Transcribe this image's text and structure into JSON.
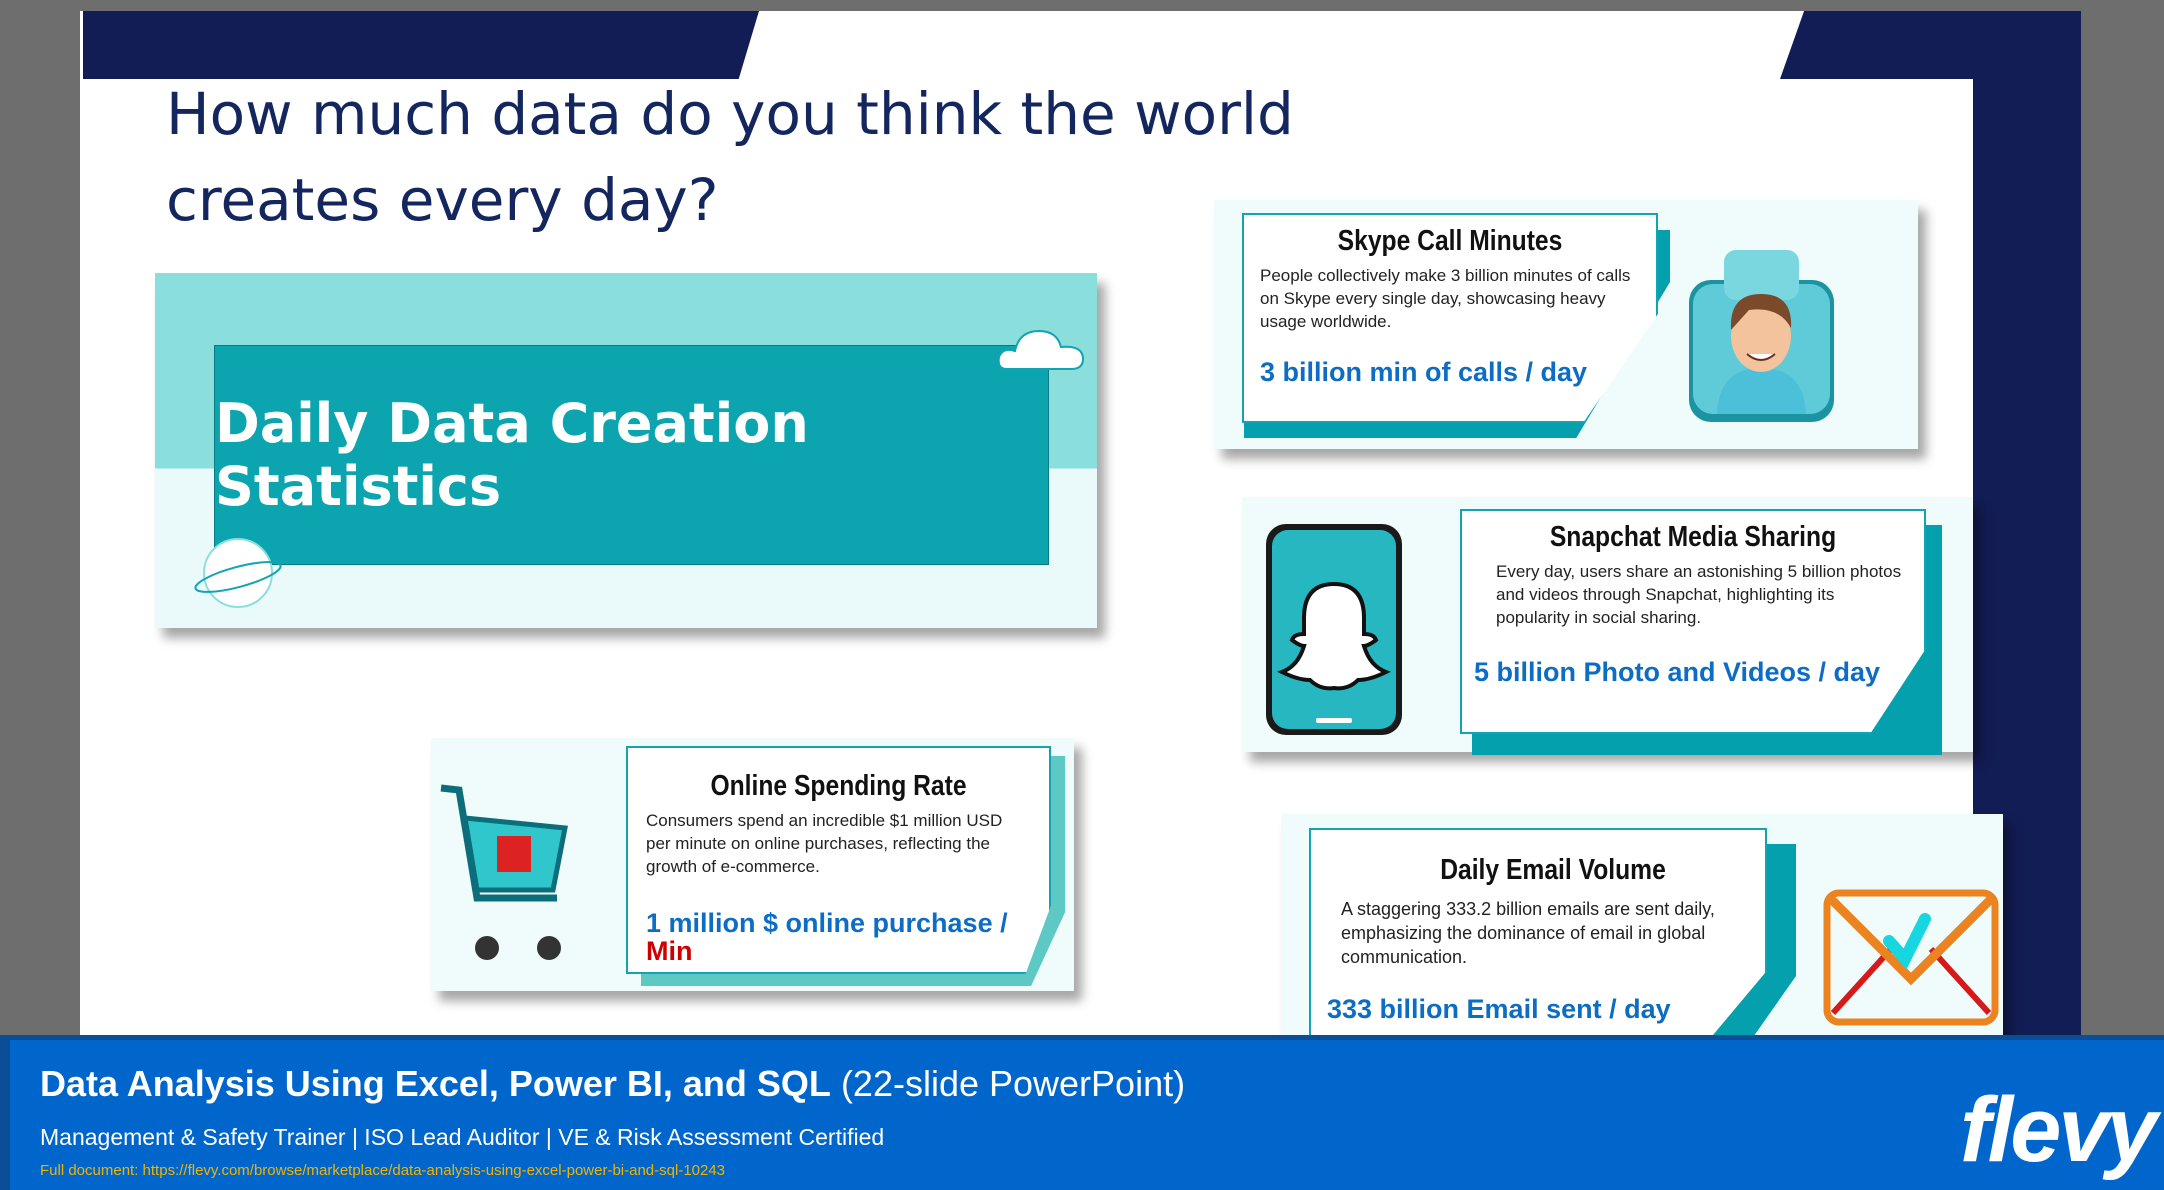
{
  "slide": {
    "title": "How much data do you think the world creates every day?",
    "banner": {
      "title": "Daily Data Creation Statistics"
    },
    "cards": [
      {
        "title": "Skype Call Minutes",
        "description": "People collectively make 3 billion minutes of calls on Skype every single day, showcasing heavy usage worldwide.",
        "stat": "3 billion min of calls / day",
        "icon": "person-avatar-icon"
      },
      {
        "title": "Snapchat Media Sharing",
        "description": "Every day, users share an astonishing 5 billion photos and videos through Snapchat, highlighting its popularity in social sharing.",
        "stat": "5 billion Photo and Videos / day",
        "icon": "snapchat-ghost-icon"
      },
      {
        "title": "Online Spending Rate",
        "description": "Consumers spend an incredible $1 million USD per minute on online purchases, reflecting the growth of e-commerce.",
        "stat": "1 million $  online purchase /",
        "stat_suffix": "Min",
        "icon": "shopping-cart-icon"
      },
      {
        "title": "Daily Email Volume",
        "description": "A staggering 333.2 billion emails are sent daily, emphasizing the dominance of email in global communication.",
        "stat": "333 billion Email sent / day",
        "icon": "envelope-icon"
      }
    ]
  },
  "footer": {
    "title": "Data Analysis Using Excel, Power BI, and SQL",
    "title_suffix": "(22-slide PowerPoint)",
    "subtitle": "Management & Safety Trainer | ISO Lead Auditor | VE & Risk Assessment Certified",
    "link": "Full document: https://flevy.com/browse/marketplace/data-analysis-using-excel-power-bi-and-sql-10243",
    "logo": "flevy"
  },
  "colors": {
    "navy": "#131d55",
    "teal": "#04a0ae",
    "footer_blue": "#0066cc",
    "stat_blue": "#0d6dc4",
    "link_yellow": "#f0b400"
  }
}
